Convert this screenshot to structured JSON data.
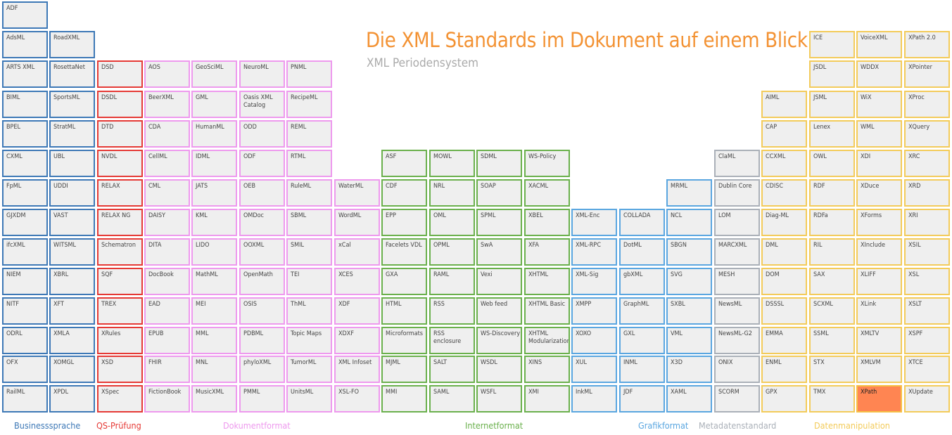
{
  "title": "Die XML Standards im Dokument auf einem Blick",
  "subtitle": "XML Periodensystem",
  "colors": {
    "Businesssprache": "#3d78b6",
    "QS-Prüfung": "#e53935",
    "Dokumentformat": "#ee99ee",
    "Internetformat": "#6ab04c",
    "Grafikformat": "#5aa6e0",
    "Metadatenstandard": "#aab0b8",
    "Datenmanipulation": "#f3cb5a",
    "highlight": "#ff8552"
  },
  "legend": [
    {
      "key": "b",
      "label": "Businesssprache"
    },
    {
      "key": "q",
      "label": "QS-Prüfung"
    },
    {
      "key": "d",
      "label": "Dokumentformat"
    },
    {
      "key": "i",
      "label": "Internetformat"
    },
    {
      "key": "g",
      "label": "Grafikformat"
    },
    {
      "key": "m",
      "label": "Metadatenstandard"
    },
    {
      "key": "x",
      "label": "Datenmanipulation"
    }
  ],
  "columns": [
    {
      "cat": "b",
      "start": 0,
      "items": [
        "ADF",
        "AdsML",
        "ARTS XML",
        "BIML",
        "BPEL",
        "CXML",
        "FpML",
        "GJXDM",
        "ifcXML",
        "NIEM",
        "NITF",
        "ODRL",
        "OFX",
        "RailML"
      ]
    },
    {
      "cat": "b",
      "start": 1,
      "items": [
        "RoadXML",
        "RosettaNet",
        "SportsML",
        "StratML",
        "UBL",
        "UDDI",
        "VAST",
        "WITSML",
        "XBRL",
        "XFT",
        "XMLA",
        "XOMGL",
        "XPDL"
      ]
    },
    {
      "cat": "q",
      "start": 2,
      "items": [
        "DSD",
        "DSDL",
        "DTD",
        "NVDL",
        "RELAX",
        "RELAX NG",
        "Schematron",
        "SQF",
        "TREX",
        "XRules",
        "XSD",
        "XSpec"
      ]
    },
    {
      "cat": "d",
      "start": 2,
      "items": [
        "AOS",
        "BeerXML",
        "CDA",
        "CellML",
        "CML",
        "DAISY",
        "DITA",
        "DocBook",
        "EAD",
        "EPUB",
        "FHIR",
        "FictionBook"
      ]
    },
    {
      "cat": "d",
      "start": 2,
      "items": [
        "GeoSciML",
        "GML",
        "HumanML",
        "IDML",
        "JATS",
        "KML",
        "LIDO",
        "MathML",
        "MEI",
        "MML",
        "MNL",
        "MusicXML"
      ]
    },
    {
      "cat": "d",
      "start": 2,
      "items": [
        "NeuroML",
        "Oasis XML Catalog",
        "ODD",
        "ODF",
        "OEB",
        "OMDoc",
        "OOXML",
        "OpenMath",
        "OSIS",
        "PDBML",
        "phyloXML",
        "PMML"
      ]
    },
    {
      "cat": "d",
      "start": 2,
      "items": [
        "PNML",
        "RecipeML",
        "REML",
        "RTML",
        "RuleML",
        "SBML",
        "SMIL",
        "TEI",
        "ThML",
        "Topic Maps",
        "TumorML",
        "UnitsML"
      ]
    },
    {
      "cat": "d",
      "start": 6,
      "items": [
        "WaterML",
        "WordML",
        "xCal",
        "XCES",
        "XDF",
        "XDXF",
        "XML Infoset",
        "XSL-FO"
      ]
    },
    {
      "cat": "i",
      "start": 5,
      "items": [
        "ASF",
        "CDF",
        "EPP",
        "Facelets VDL",
        "GXA",
        "HTML",
        "Microformats",
        "MJML",
        "MMI"
      ]
    },
    {
      "cat": "i",
      "start": 5,
      "items": [
        "MOWL",
        "NRL",
        "OML",
        "OPML",
        "RAML",
        "RSS",
        "RSS enclosure",
        "SALT",
        "SAML"
      ]
    },
    {
      "cat": "i",
      "start": 5,
      "items": [
        "SDML",
        "SOAP",
        "SPML",
        "SwA",
        "Vexi",
        "Web feed",
        "WS-Discovery",
        "WSDL",
        "WSFL"
      ]
    },
    {
      "cat": "i",
      "start": 5,
      "items": [
        "WS-Policy",
        "XACML",
        "XBEL",
        "XFA",
        "XHTML",
        "XHTML Basic",
        "XHTML Modularization",
        "XINS",
        "XMI"
      ]
    },
    {
      "cat": "g",
      "start": 7,
      "items": [
        "XML-Enc",
        "XML-RPC",
        "XML-Sig",
        "XMPP",
        "XOXO",
        "XUL",
        "InkML"
      ]
    },
    {
      "cat": "g",
      "start": 7,
      "items": [
        "COLLADA",
        "DotML",
        "gbXML",
        "GraphML",
        "GXL",
        "INML",
        "JDF"
      ]
    },
    {
      "cat": "g",
      "start": 6,
      "items": [
        "MRML",
        "NCL",
        "SBGN",
        "SVG",
        "SXBL",
        "VML",
        "X3D",
        "XAML"
      ]
    },
    {
      "cat": "m",
      "start": 5,
      "items": [
        "ClaML",
        "Dublin Core",
        "LOM",
        "MARCXML",
        "MESH",
        "NewsML",
        "NewsML-G2",
        "ONIX",
        "SCORM"
      ]
    },
    {
      "cat": "x",
      "start": 3,
      "items": [
        "AIML",
        "CAP",
        "CCXML",
        "CDISC",
        "Diag-ML",
        "DML",
        "DOM",
        "DSSSL",
        "EMMA",
        "ENML",
        "GPX"
      ]
    },
    {
      "cat": "x",
      "start": 1,
      "items": [
        "ICE",
        "JSDL",
        "JSML",
        "Lenex",
        "OWL",
        "RDF",
        "RDFa",
        "RIL",
        "SAX",
        "SCXML",
        "SSML",
        "STX",
        "TMX"
      ]
    },
    {
      "cat": "x",
      "start": 1,
      "items": [
        "VoiceXML",
        "WDDX",
        "WiX",
        "WML",
        "XDI",
        "XDuce",
        "XForms",
        "XInclude",
        "XLIFF",
        "XLink",
        "XMLTV",
        "XMLVM",
        "XPath"
      ]
    },
    {
      "cat": "x",
      "start": 1,
      "items": [
        "XPath 2.0",
        "XPointer",
        "XProc",
        "XQuery",
        "XRC",
        "XRD",
        "XRI",
        "XSIL",
        "XSL",
        "XSLT",
        "XSPF",
        "XTCE",
        "XUpdate"
      ]
    }
  ],
  "highlighted": "XPath"
}
